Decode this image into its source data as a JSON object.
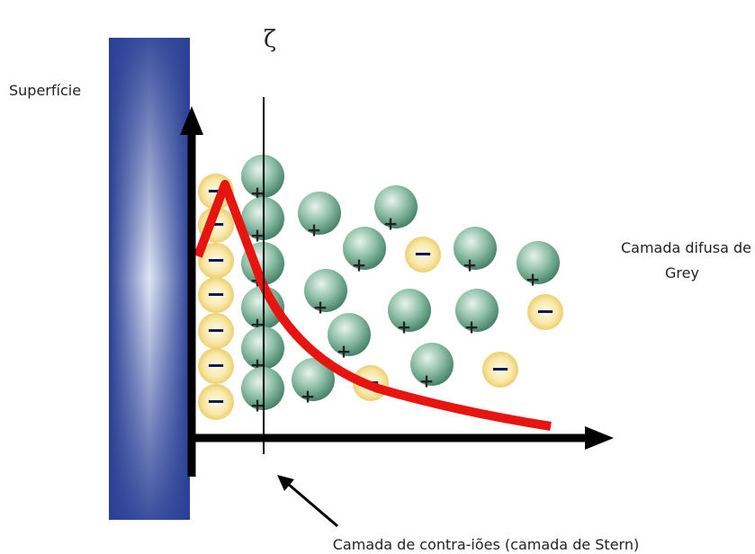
{
  "labels": {
    "surface": "Superfície",
    "zeta": "ζ",
    "diffuse_line1": "Camada difusa de",
    "diffuse_line2": "Grey",
    "stern": "Camada de contra-iões (camada de Stern)"
  },
  "ion_signs": {
    "negative": "−",
    "positive": "+"
  }
}
